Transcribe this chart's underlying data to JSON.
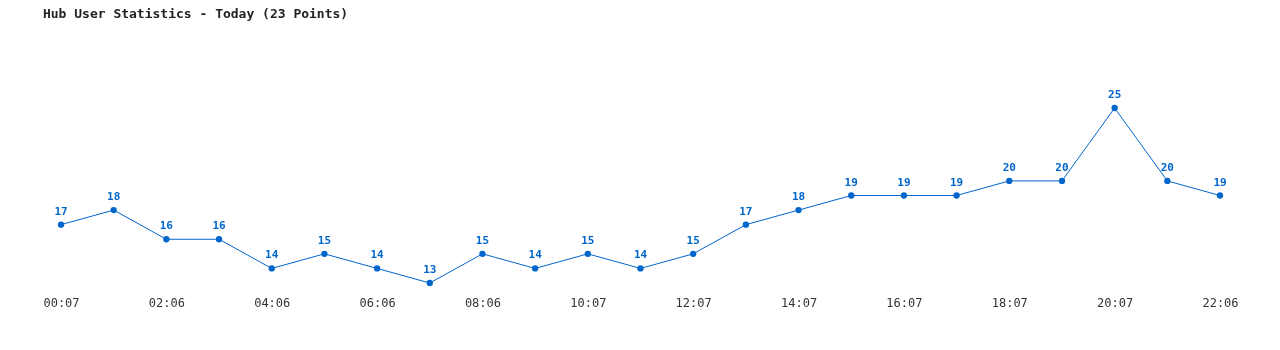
{
  "chart_data": {
    "type": "line",
    "title": "Hub User Statistics - Today (23 Points)",
    "categories": [
      "00:07",
      null,
      "02:06",
      null,
      "04:06",
      null,
      "06:06",
      null,
      "08:06",
      null,
      "10:07",
      null,
      "12:07",
      null,
      "14:07",
      null,
      "16:07",
      null,
      "18:07",
      null,
      "20:07",
      null,
      "22:06"
    ],
    "series": [
      {
        "color": "#0066cc",
        "values": [
          17,
          18,
          16,
          16,
          14,
          15,
          14,
          13,
          15,
          14,
          15,
          14,
          15,
          17,
          18,
          19,
          19,
          19,
          20,
          20,
          25,
          20,
          19
        ]
      }
    ],
    "data_labels": true,
    "marker": "circle",
    "line_style": "solid",
    "grid": false,
    "tick_labels": "x"
  }
}
